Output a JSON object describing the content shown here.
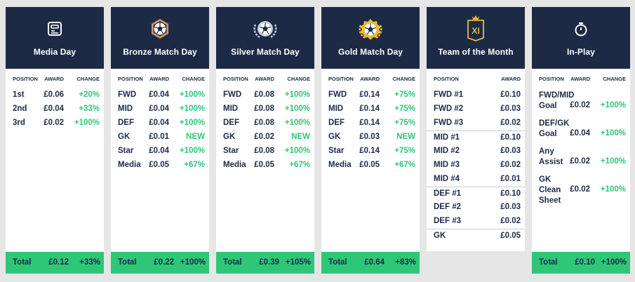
{
  "headers": {
    "position": "POSITION",
    "award": "AWARD",
    "change": "CHANGE"
  },
  "total_label": "Total",
  "colors": {
    "navy": "#1d2a45",
    "green": "#2ec778",
    "gold": "#e8b93a",
    "bronze": "#d99a5a",
    "silver": "#c8cdd6"
  },
  "cards": [
    {
      "title": "Media Day",
      "icon": "media-card-icon",
      "rows": [
        {
          "pos": "1st",
          "award": "£0.06",
          "change": "+20%"
        },
        {
          "pos": "2nd",
          "award": "£0.04",
          "change": "+33%"
        },
        {
          "pos": "3rd",
          "award": "£0.02",
          "change": "+100%"
        }
      ],
      "total": {
        "award": "£0.12",
        "change": "+33%"
      }
    },
    {
      "title": "Bronze Match Day",
      "icon": "bronze-ball-icon",
      "rows": [
        {
          "pos": "FWD",
          "award": "£0.04",
          "change": "+100%"
        },
        {
          "pos": "MID",
          "award": "£0.04",
          "change": "+100%"
        },
        {
          "pos": "DEF",
          "award": "£0.04",
          "change": "+100%"
        },
        {
          "pos": "GK",
          "award": "£0.01",
          "change": "NEW"
        },
        {
          "pos": "Star",
          "award": "£0.04",
          "change": "+100%"
        },
        {
          "pos": "Media",
          "award": "£0.05",
          "change": "+67%"
        }
      ],
      "total": {
        "award": "£0.22",
        "change": "+100%"
      }
    },
    {
      "title": "Silver Match Day",
      "icon": "silver-ball-icon",
      "rows": [
        {
          "pos": "FWD",
          "award": "£0.08",
          "change": "+100%"
        },
        {
          "pos": "MID",
          "award": "£0.08",
          "change": "+100%"
        },
        {
          "pos": "DEF",
          "award": "£0.08",
          "change": "+100%"
        },
        {
          "pos": "GK",
          "award": "£0.02",
          "change": "NEW"
        },
        {
          "pos": "Star",
          "award": "£0.08",
          "change": "+100%"
        },
        {
          "pos": "Media",
          "award": "£0.05",
          "change": "+67%"
        }
      ],
      "total": {
        "award": "£0.39",
        "change": "+105%"
      }
    },
    {
      "title": "Gold Match Day",
      "icon": "gold-ball-icon",
      "rows": [
        {
          "pos": "FWD",
          "award": "£0.14",
          "change": "+75%"
        },
        {
          "pos": "MID",
          "award": "£0.14",
          "change": "+75%"
        },
        {
          "pos": "DEF",
          "award": "£0.14",
          "change": "+75%"
        },
        {
          "pos": "GK",
          "award": "£0.03",
          "change": "NEW"
        },
        {
          "pos": "Star",
          "award": "£0.14",
          "change": "+75%"
        },
        {
          "pos": "Media",
          "award": "£0.05",
          "change": "+67%"
        }
      ],
      "total": {
        "award": "£0.64",
        "change": "+83%"
      }
    },
    {
      "title": "Team of the Month",
      "icon": "xi-crown-icon",
      "badge_text": "XI",
      "rows": [
        {
          "pos": "FWD #1",
          "award": "£0.10"
        },
        {
          "pos": "FWD #2",
          "award": "£0.03"
        },
        {
          "pos": "FWD #3",
          "award": "£0.02"
        },
        {
          "pos": "MID #1",
          "award": "£0.10"
        },
        {
          "pos": "MID #2",
          "award": "£0.03"
        },
        {
          "pos": "MID #3",
          "award": "£0.02"
        },
        {
          "pos": "MID #4",
          "award": "£0.01"
        },
        {
          "pos": "DEF #1",
          "award": "£0.10"
        },
        {
          "pos": "DEF #2",
          "award": "£0.03"
        },
        {
          "pos": "DEF #3",
          "award": "£0.02"
        },
        {
          "pos": "GK",
          "award": "£0.05"
        }
      ]
    },
    {
      "title": "In-Play",
      "icon": "stopwatch-icon",
      "rows": [
        {
          "pos": "FWD/MID\nGoal",
          "award": "£0.02",
          "change": "+100%"
        },
        {
          "pos": "DEF/GK\nGoal",
          "award": "£0.04",
          "change": "+100%"
        },
        {
          "pos": "Any\nAssist",
          "award": "£0.02",
          "change": "+100%"
        },
        {
          "pos": "GK\nClean\nSheet",
          "award": "£0.02",
          "change": "+100%"
        }
      ],
      "total": {
        "award": "£0.10",
        "change": "+100%"
      }
    }
  ]
}
